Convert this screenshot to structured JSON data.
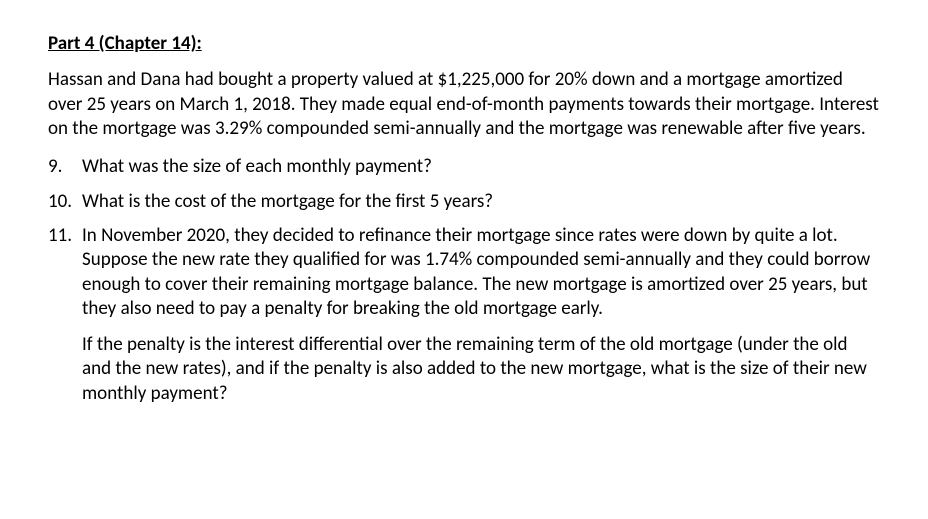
{
  "heading": "Part 4 (Chapter 14):",
  "intro": "Hassan and Dana had bought a property valued at $1,225,000 for 20% down and a mortgage amortized over 25 years on March 1, 2018. They made equal end-of-month payments towards their mortgage. Interest on the mortgage was 3.29% compounded semi-annually and the mortgage was renewable after five years.",
  "questions": [
    {
      "num": "9.",
      "text": "What was the size of each monthly payment?"
    },
    {
      "num": "10.",
      "text": "What is the cost of the mortgage for the first 5 years?"
    },
    {
      "num": "11.",
      "text": "In November 2020, they decided to refinance their mortgage since rates were down by quite a lot. Suppose the new rate they qualified for was 1.74% compounded semi-annually and they could borrow enough to cover their remaining mortgage balance. The new mortgage is amortized over 25 years, but they also need to pay a penalty for breaking the old mortgage early."
    }
  ],
  "q11_followup": "If the penalty is the interest differential over the remaining term of the old mortgage (under the old and the new rates), and if the penalty is also added to the new mortgage, what is the size of their new monthly payment?",
  "colors": {
    "text": "#000000",
    "background": "#ffffff"
  },
  "typography": {
    "font_family": "Calibri",
    "body_fontsize_pt": 14,
    "heading_weight": 700,
    "body_weight": 400
  }
}
